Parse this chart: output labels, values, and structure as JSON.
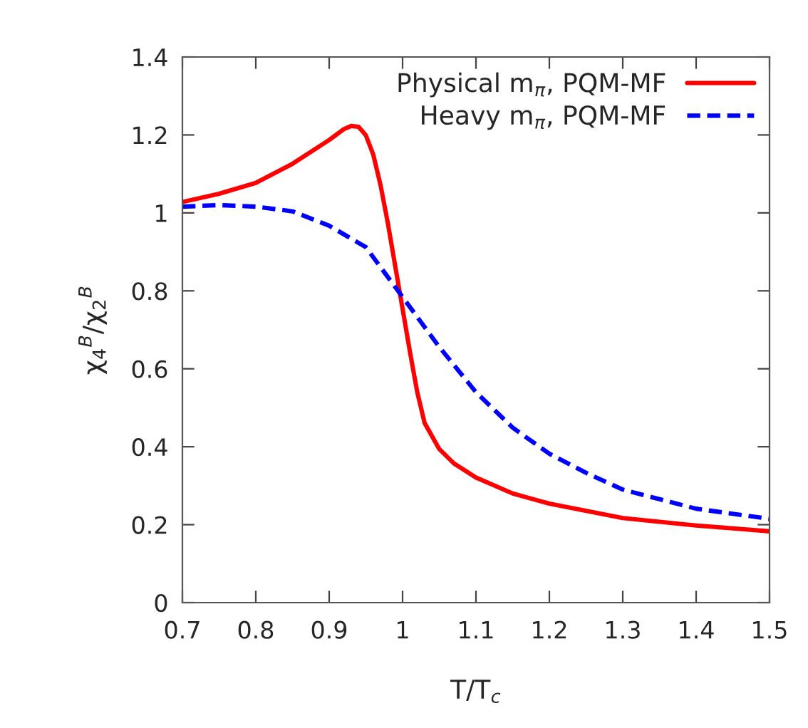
{
  "chart_data": {
    "type": "line",
    "xlabel": "T/T$_{c}$",
    "ylabel": "χ$_{4}$$^{B}$/χ$_{2}$$^{B}$",
    "xlim": [
      0.7,
      1.5
    ],
    "ylim": [
      0,
      1.4
    ],
    "xticks": [
      0.7,
      0.8,
      0.9,
      1,
      1.1,
      1.2,
      1.3,
      1.4,
      1.5
    ],
    "yticks": [
      0,
      0.2,
      0.4,
      0.6,
      0.8,
      1,
      1.2,
      1.4
    ],
    "grid": false,
    "legend": "top right",
    "series": [
      {
        "name": "Physical m$_{π}$, PQM-MF",
        "color": "#ff0000",
        "line_style": "solid",
        "x": [
          0.7,
          0.75,
          0.8,
          0.85,
          0.9,
          0.92,
          0.93,
          0.94,
          0.95,
          0.96,
          0.97,
          0.98,
          0.99,
          1.0,
          1.01,
          1.02,
          1.03,
          1.05,
          1.07,
          1.1,
          1.15,
          1.2,
          1.3,
          1.4,
          1.5
        ],
        "values": [
          1.028,
          1.049,
          1.077,
          1.126,
          1.187,
          1.215,
          1.223,
          1.221,
          1.199,
          1.15,
          1.071,
          0.973,
          0.863,
          0.754,
          0.644,
          0.54,
          0.461,
          0.394,
          0.357,
          0.321,
          0.28,
          0.254,
          0.217,
          0.198,
          0.183
        ]
      },
      {
        "name": "Heavy m$_{π}$, PQM-MF",
        "color": "#0000ff",
        "line_style": "dashed",
        "x": [
          0.7,
          0.75,
          0.8,
          0.85,
          0.9,
          0.95,
          1.0,
          1.05,
          1.1,
          1.15,
          1.2,
          1.25,
          1.3,
          1.4,
          1.5
        ],
        "values": [
          1.016,
          1.02,
          1.016,
          1.004,
          0.967,
          0.912,
          0.784,
          0.656,
          0.54,
          0.449,
          0.382,
          0.333,
          0.29,
          0.241,
          0.215
        ]
      }
    ]
  }
}
